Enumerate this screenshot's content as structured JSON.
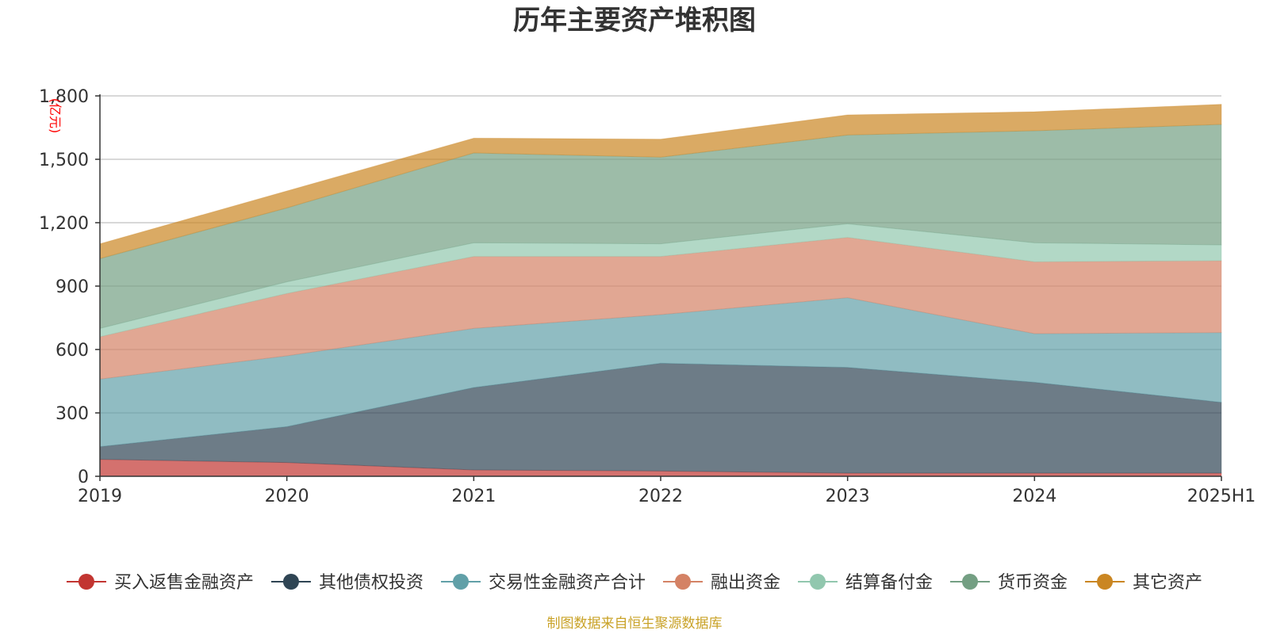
{
  "chart_data": {
    "type": "area",
    "stacked": true,
    "title": "历年主要资产堆积图",
    "unit_label": "(亿元)",
    "categories": [
      "2019",
      "2020",
      "2021",
      "2022",
      "2023",
      "2024",
      "2025H1"
    ],
    "ylim": [
      0,
      1800
    ],
    "yticks": [
      0,
      300,
      600,
      900,
      1200,
      1500,
      1800
    ],
    "ytick_labels": [
      "0",
      "300",
      "600",
      "900",
      "1,200",
      "1,500",
      "1,800"
    ],
    "grid": true,
    "legend_position": "bottom",
    "series": [
      {
        "name": "买入返售金融资产",
        "color": "#c23531",
        "values": [
          80,
          65,
          30,
          25,
          15,
          15,
          15
        ]
      },
      {
        "name": "其他债权投资",
        "color": "#2f4554",
        "values": [
          60,
          170,
          390,
          510,
          500,
          430,
          335
        ]
      },
      {
        "name": "交易性金融资产合计",
        "color": "#61a0a8",
        "values": [
          320,
          335,
          280,
          230,
          330,
          230,
          330
        ]
      },
      {
        "name": "融出资金",
        "color": "#d48265",
        "values": [
          200,
          295,
          340,
          275,
          285,
          340,
          340
        ]
      },
      {
        "name": "结算备付金",
        "color": "#91c7ae",
        "values": [
          40,
          55,
          65,
          60,
          65,
          90,
          75
        ]
      },
      {
        "name": "货币资金",
        "color": "#749f83",
        "values": [
          330,
          350,
          425,
          410,
          420,
          530,
          570
        ]
      },
      {
        "name": "其它资产",
        "color": "#ca8622",
        "values": [
          70,
          80,
          70,
          85,
          95,
          90,
          95
        ]
      }
    ],
    "source_note": "制图数据来自恒生聚源数据库"
  }
}
